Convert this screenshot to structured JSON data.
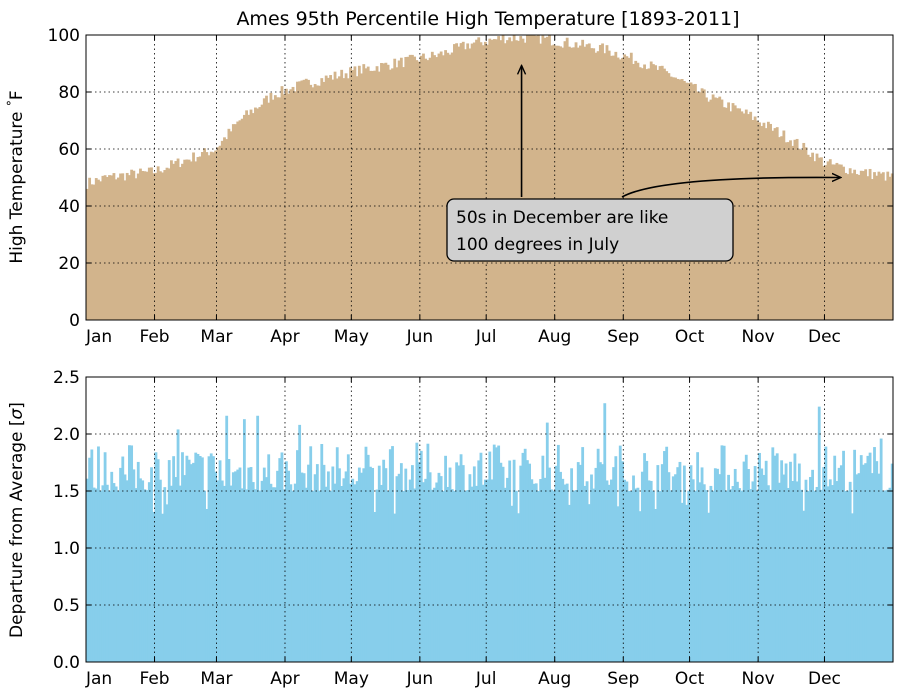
{
  "chart_data": [
    {
      "type": "bar",
      "title": "Ames 95th Percentile High Temperature [1893-2011]",
      "xlabel": "",
      "ylabel": "High Temperature °F",
      "ylabel_parts": {
        "text": "High Temperature ",
        "sup": "°",
        "unit": "F"
      },
      "x_ticklabels": [
        "Jan",
        "Feb",
        "Mar",
        "Apr",
        "May",
        "Jun",
        "Jul",
        "Aug",
        "Sep",
        "Oct",
        "Nov",
        "Dec"
      ],
      "month_start_days": [
        1,
        32,
        60,
        91,
        121,
        152,
        182,
        213,
        244,
        274,
        305,
        335
      ],
      "xlim": [
        1,
        366
      ],
      "ylim": [
        0,
        100
      ],
      "y_ticks": [
        0,
        20,
        40,
        60,
        80,
        100
      ],
      "y_ticklabels": [
        "0",
        "20",
        "40",
        "60",
        "80",
        "100"
      ],
      "grid": true,
      "color": "#d2b48c",
      "series": [
        {
          "day_of_year_anchors": [
            1,
            10,
            31,
            45,
            59,
            70,
            85,
            100,
            120,
            140,
            160,
            175,
            190,
            205,
            220,
            235,
            250,
            265,
            280,
            300,
            320,
            335,
            350,
            366
          ],
          "values": [
            48,
            50,
            52,
            56,
            60,
            70,
            79,
            83,
            87,
            90,
            93,
            97,
            99,
            99,
            97,
            95,
            91,
            86,
            79,
            72,
            63,
            55,
            52,
            50
          ]
        }
      ],
      "annotation": {
        "text_lines": [
          "50s in December are like",
          "100 degrees in July"
        ],
        "arrow_targets": [
          {
            "x_day": 198,
            "y": 89
          },
          {
            "x_day": 342,
            "y": 50
          }
        ]
      }
    },
    {
      "type": "bar",
      "title": "",
      "xlabel": "",
      "ylabel": "Departure from Average [σ]",
      "ylabel_parts": {
        "text": "Departure from Average [",
        "sym": "σ",
        "end": "]"
      },
      "x_ticklabels": [
        "Jan",
        "Feb",
        "Mar",
        "Apr",
        "May",
        "Jun",
        "Jul",
        "Aug",
        "Sep",
        "Oct",
        "Nov",
        "Dec"
      ],
      "month_start_days": [
        1,
        32,
        60,
        91,
        121,
        152,
        182,
        213,
        244,
        274,
        305,
        335
      ],
      "xlim": [
        1,
        366
      ],
      "ylim": [
        0,
        2.5
      ],
      "y_ticks": [
        0,
        0.5,
        1.0,
        1.5,
        2.0,
        2.5
      ],
      "y_ticklabels": [
        "0.0",
        "0.5",
        "1.0",
        "1.5",
        "2.0",
        "2.5"
      ],
      "grid": true,
      "color": "#87ceeb",
      "series": [
        {
          "typical_range": [
            1.5,
            2.0
          ],
          "peaks": [
            {
              "x_day": 42,
              "y": 2.04
            },
            {
              "x_day": 64,
              "y": 2.16
            },
            {
              "x_day": 72,
              "y": 2.13
            },
            {
              "x_day": 78,
              "y": 2.16
            },
            {
              "x_day": 97,
              "y": 2.08
            },
            {
              "x_day": 209,
              "y": 2.1
            },
            {
              "x_day": 235,
              "y": 2.27
            },
            {
              "x_day": 332,
              "y": 2.24
            },
            {
              "x_day": 360,
              "y": 1.96
            }
          ]
        }
      ]
    }
  ]
}
